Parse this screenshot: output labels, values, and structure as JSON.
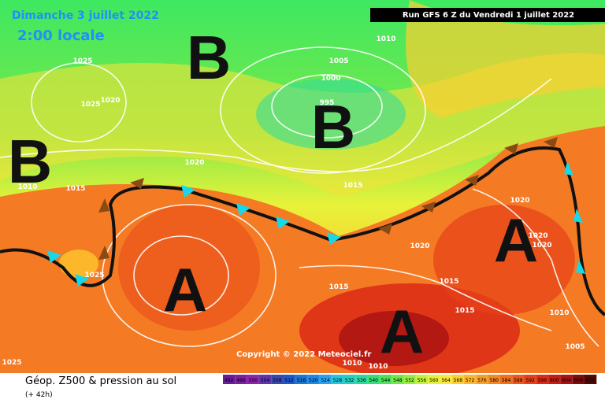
{
  "header": {
    "date": "Dimanche 3 juillet 2022",
    "time": "2:00 locale",
    "run": "Run GFS 6 Z du Vendredi 1 juillet 2022"
  },
  "copyright": "Copyright © 2022 Meteociel.fr",
  "footer": {
    "title": "Géop. Z500 & pression au sol",
    "lead": "(+ 42h)"
  },
  "systems": [
    "B",
    "B",
    "B",
    "A",
    "A",
    "A"
  ],
  "isobars": [
    "1010",
    "1025",
    "1005",
    "1000",
    "1025",
    "1020",
    "995",
    "1020",
    "1010",
    "1015",
    "1015",
    "1025",
    "1020",
    "1020",
    "1020",
    "1020",
    "1015",
    "1015",
    "1015",
    "1010",
    "1005",
    "1010",
    "1010",
    "1025"
  ],
  "scale": [
    {
      "label": "492",
      "color": "#6a1b9a"
    },
    {
      "label": "496",
      "color": "#7b1fa2"
    },
    {
      "label": "500",
      "color": "#8e24aa"
    },
    {
      "label": "504",
      "color": "#5e35b1"
    },
    {
      "label": "508",
      "color": "#3949ab"
    },
    {
      "label": "512",
      "color": "#1e58c8"
    },
    {
      "label": "516",
      "color": "#1976d2"
    },
    {
      "label": "520",
      "color": "#1e88e5"
    },
    {
      "label": "524",
      "color": "#29a0f0"
    },
    {
      "label": "528",
      "color": "#26c6da"
    },
    {
      "label": "532",
      "color": "#26d0c0"
    },
    {
      "label": "536",
      "color": "#2ed6a0"
    },
    {
      "label": "540",
      "color": "#36dc7a"
    },
    {
      "label": "544",
      "color": "#4ce25a"
    },
    {
      "label": "548",
      "color": "#72e84a"
    },
    {
      "label": "552",
      "color": "#98ee40"
    },
    {
      "label": "556",
      "color": "#c2f23c"
    },
    {
      "label": "560",
      "color": "#e6f23a"
    },
    {
      "label": "564",
      "color": "#f8e838"
    },
    {
      "label": "568",
      "color": "#fcd030"
    },
    {
      "label": "572",
      "color": "#fcb82a"
    },
    {
      "label": "576",
      "color": "#f8a026"
    },
    {
      "label": "580",
      "color": "#f48822"
    },
    {
      "label": "584",
      "color": "#f0701e"
    },
    {
      "label": "588",
      "color": "#ec581a"
    },
    {
      "label": "592",
      "color": "#e64018"
    },
    {
      "label": "596",
      "color": "#dc2a16"
    },
    {
      "label": "600",
      "color": "#c81c14"
    },
    {
      "label": "604",
      "color": "#a81212"
    },
    {
      "label": "608",
      "color": "#800c0c"
    },
    {
      "label": "612",
      "color": "#500808"
    }
  ]
}
